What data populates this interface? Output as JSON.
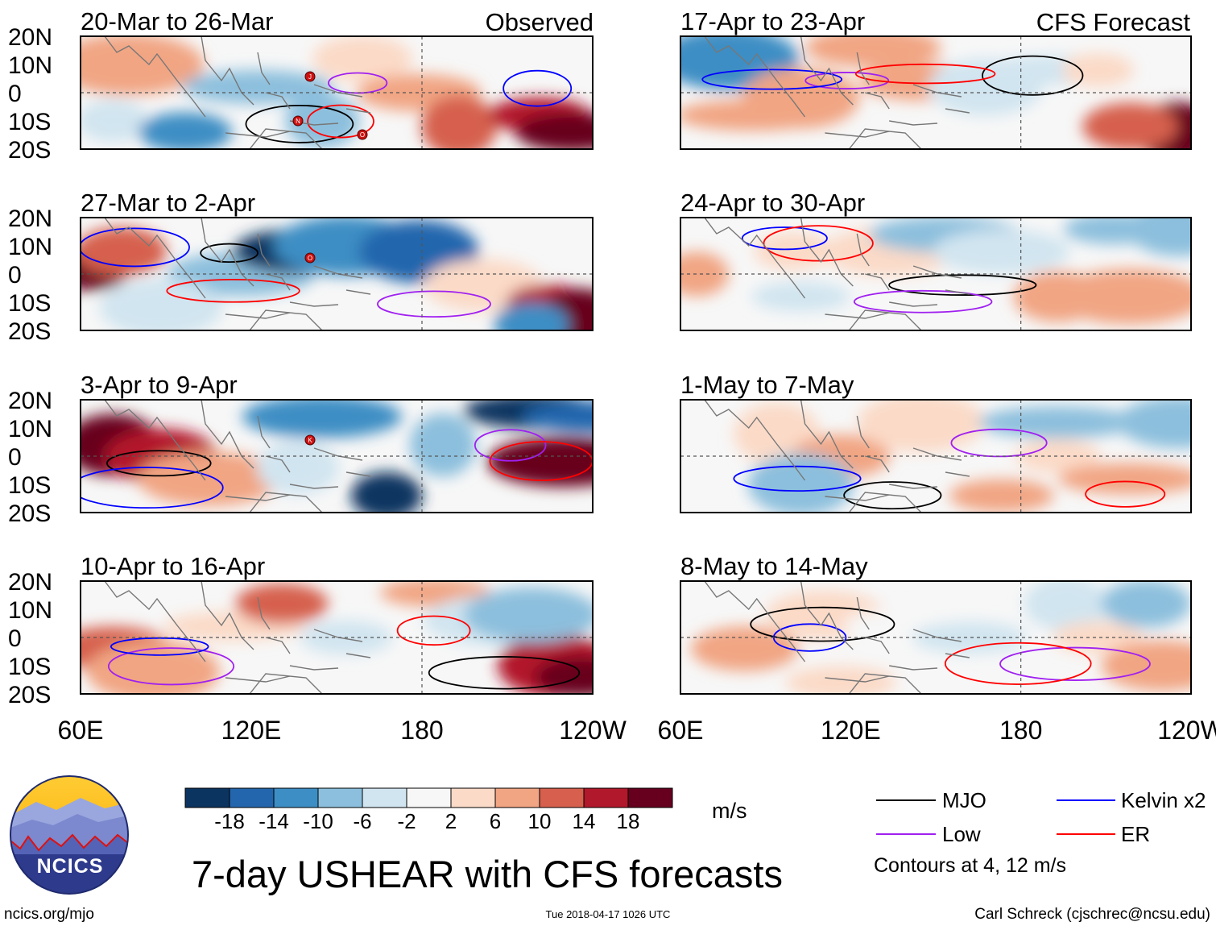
{
  "title": "7-day USHEAR with CFS forecasts",
  "logo_text": "NCICS",
  "site": "ncics.org/mjo",
  "timestamp": "Tue 2018-04-17 1026 UTC",
  "credit": "Carl Schreck (cjschrec@ncsu.edu)",
  "column_labels": {
    "observed": "Observed",
    "forecast": "CFS Forecast"
  },
  "colorbar": {
    "unit": "m/s",
    "colors": [
      "#0b3460",
      "#2366ad",
      "#3d8ec4",
      "#8cbfdd",
      "#d1e5f0",
      "#f7f7f7",
      "#fbdac7",
      "#f1a583",
      "#d6604d",
      "#b2182b",
      "#67001f"
    ],
    "tick_labels": [
      "-18",
      "-14",
      "-10",
      "-6",
      "-2",
      "2",
      "6",
      "10",
      "14",
      "18"
    ]
  },
  "legend": {
    "items": [
      {
        "label": "MJO",
        "color": "#000000"
      },
      {
        "label": "Low",
        "color": "#a020f0"
      },
      {
        "label": "Kelvin x2",
        "color": "#0000ff"
      },
      {
        "label": "ER",
        "color": "#ff0000"
      }
    ],
    "note": "Contours at 4, 12 m/s"
  },
  "chart_data": {
    "type": "heatmap",
    "variable": "USHEAR",
    "unit": "m/s",
    "contour_levels": [
      4,
      12
    ],
    "lat_tick_labels": [
      "20N",
      "10N",
      "0",
      "10S",
      "20S"
    ],
    "lon_tick_labels": [
      "60E",
      "120E",
      "180",
      "120W"
    ],
    "lat_range": [
      -20,
      20
    ],
    "lon_range": [
      60,
      240
    ],
    "panels": [
      {
        "title": "20-Mar to 26-Mar",
        "source": "Observed",
        "storms": [
          "J",
          "N",
          "O"
        ]
      },
      {
        "title": "27-Mar to 2-Apr",
        "source": "Observed",
        "storms": [
          "O"
        ]
      },
      {
        "title": "3-Apr to 9-Apr",
        "source": "Observed",
        "storms": [
          "K"
        ]
      },
      {
        "title": "10-Apr to 16-Apr",
        "source": "Observed",
        "storms": []
      },
      {
        "title": "17-Apr to 23-Apr",
        "source": "CFS Forecast",
        "storms": []
      },
      {
        "title": "24-Apr to 30-Apr",
        "source": "CFS Forecast",
        "storms": []
      },
      {
        "title": "1-May to 7-May",
        "source": "CFS Forecast",
        "storms": []
      },
      {
        "title": "8-May to 14-May",
        "source": "CFS Forecast",
        "storms": []
      }
    ]
  }
}
